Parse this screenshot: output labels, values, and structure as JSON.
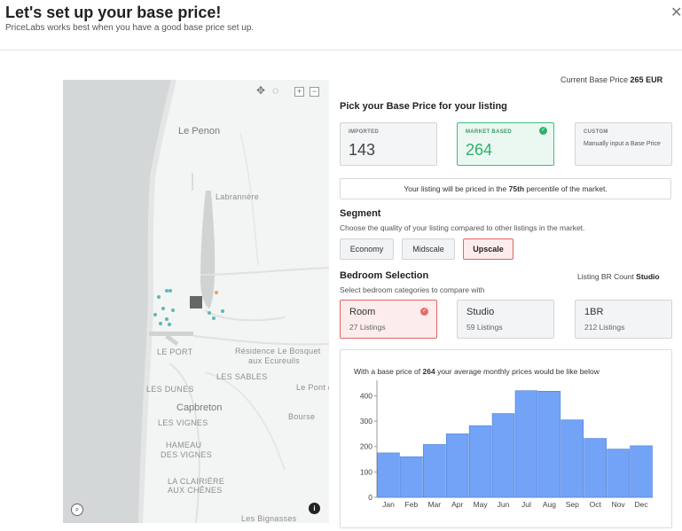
{
  "header": {
    "title": "Let's set up your base price!",
    "subtitle": "PriceLabs works best when you have a good base price set up.",
    "close_icon": "close-icon"
  },
  "current_base": {
    "label": "Current Base Price",
    "value": "265 EUR"
  },
  "pick_section": {
    "title": "Pick your Base Price for your listing",
    "options": [
      {
        "label": "IMPORTED",
        "value": "143"
      },
      {
        "label": "MARKET BASED",
        "value": "264",
        "selected": true
      },
      {
        "label": "CUSTOM",
        "description": "Manually input a Base Price"
      }
    ]
  },
  "percentile": {
    "prefix": "Your listing will be priced in the",
    "value": "75th",
    "suffix": "percentile of the market."
  },
  "segment": {
    "title": "Segment",
    "hint": "Choose the quality of your listing compared to other listings in the market.",
    "options": [
      "Economy",
      "Midscale",
      "Upscale"
    ],
    "selected": "Upscale"
  },
  "bedroom": {
    "title": "Bedroom Selection",
    "hint": "Select bedroom categories to compare with",
    "count_label": "Listing BR Count",
    "count_value": "Studio",
    "options": [
      {
        "name": "Room",
        "listings": "27 Listings",
        "selected": true
      },
      {
        "name": "Studio",
        "listings": "59 Listings"
      },
      {
        "name": "1BR",
        "listings": "212 Listings"
      }
    ]
  },
  "chart_caption": {
    "prefix": "With a base price of",
    "value": "264",
    "suffix": "your average monthly prices would be like below"
  },
  "map": {
    "labels": [
      "Le Penon",
      "Labrannère",
      "LE PORT",
      "Résidence Le Bosquet",
      "aux Ecureuils",
      "LES SABLES",
      "LES DUNES",
      "Le Pont du",
      "Capbreton",
      "Bourse",
      "LES VIGNES",
      "HAMEAU",
      "DES VIGNES",
      "LA CLAIRIÈRE",
      "AUX CHÊNES",
      "Les Bignasses"
    ],
    "colors": {
      "land": "#f3f4f4",
      "sea": "#d3d7d7",
      "lagoon": "#cfd3d3",
      "marker": "#5bb9b6",
      "selected": "#666666",
      "accent": "#f0a050"
    }
  },
  "chart_data": {
    "type": "bar",
    "categories": [
      "Jan",
      "Feb",
      "Mar",
      "Apr",
      "May",
      "Jun",
      "Jul",
      "Aug",
      "Sep",
      "Oct",
      "Nov",
      "Dec"
    ],
    "values": [
      175,
      160,
      208,
      250,
      282,
      330,
      420,
      418,
      305,
      232,
      190,
      203
    ],
    "ylim": [
      0,
      440
    ],
    "yticks": [
      0,
      100,
      200,
      300,
      400
    ],
    "bar_color": "#73a3f7",
    "grid": false
  }
}
